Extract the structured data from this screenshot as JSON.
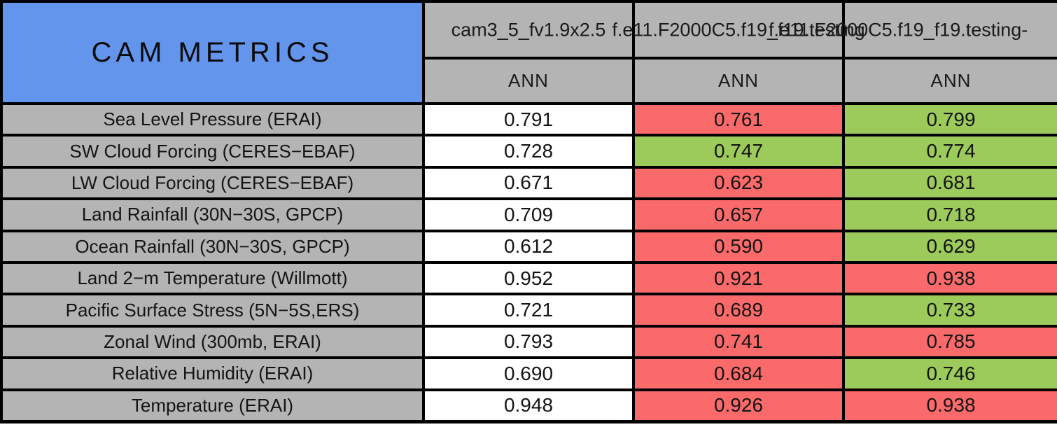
{
  "chart_data": {
    "type": "table",
    "title": "CAM METRICS",
    "season_labels": [
      "ANN",
      "ANN",
      "ANN"
    ],
    "columns": [
      "cam3_5_fv1.9x2.5",
      "f.e11.F2000C5.f19_f19.testing",
      "f.e11.F2000C5.f19_f19.testing-"
    ],
    "color_map": {
      "white": "#FFFFFF",
      "red": "#FB6A6A",
      "green": "#9CCB5C",
      "cell_gray": "#B4B4B4",
      "header_blue": "#6495ED"
    },
    "color_semantics": {
      "white": "baseline run value",
      "green": "improved vs baseline",
      "red": "degraded vs baseline"
    },
    "rows": [
      {
        "label": "Sea Level Pressure (ERAI)",
        "values": [
          "0.791",
          "0.761",
          "0.799"
        ],
        "cell_colors": [
          "white",
          "red",
          "green"
        ]
      },
      {
        "label": "SW Cloud Forcing (CERES−EBAF)",
        "values": [
          "0.728",
          "0.747",
          "0.774"
        ],
        "cell_colors": [
          "white",
          "green",
          "green"
        ]
      },
      {
        "label": "LW Cloud Forcing (CERES−EBAF)",
        "values": [
          "0.671",
          "0.623",
          "0.681"
        ],
        "cell_colors": [
          "white",
          "red",
          "green"
        ]
      },
      {
        "label": "Land Rainfall (30N−30S, GPCP)",
        "values": [
          "0.709",
          "0.657",
          "0.718"
        ],
        "cell_colors": [
          "white",
          "red",
          "green"
        ]
      },
      {
        "label": "Ocean Rainfall (30N−30S, GPCP)",
        "values": [
          "0.612",
          "0.590",
          "0.629"
        ],
        "cell_colors": [
          "white",
          "red",
          "green"
        ]
      },
      {
        "label": "Land 2−m Temperature (Willmott)",
        "values": [
          "0.952",
          "0.921",
          "0.938"
        ],
        "cell_colors": [
          "white",
          "red",
          "red"
        ]
      },
      {
        "label": "Pacific Surface Stress (5N−5S,ERS)",
        "values": [
          "0.721",
          "0.689",
          "0.733"
        ],
        "cell_colors": [
          "white",
          "red",
          "green"
        ]
      },
      {
        "label": "Zonal Wind (300mb, ERAI)",
        "values": [
          "0.793",
          "0.741",
          "0.785"
        ],
        "cell_colors": [
          "white",
          "red",
          "red"
        ]
      },
      {
        "label": "Relative Humidity (ERAI)",
        "values": [
          "0.690",
          "0.684",
          "0.746"
        ],
        "cell_colors": [
          "white",
          "red",
          "green"
        ]
      },
      {
        "label": "Temperature (ERAI)",
        "values": [
          "0.948",
          "0.926",
          "0.938"
        ],
        "cell_colors": [
          "white",
          "red",
          "red"
        ]
      }
    ]
  }
}
